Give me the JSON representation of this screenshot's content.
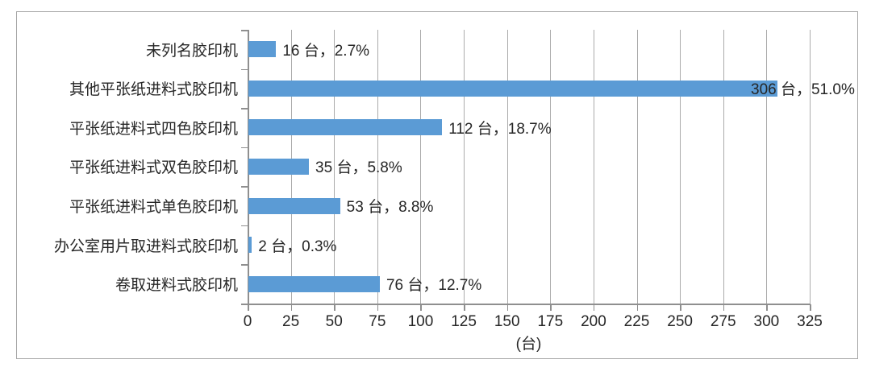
{
  "chart_data": {
    "type": "bar",
    "orientation": "horizontal",
    "title": "",
    "xlabel": "(台)",
    "ylabel": "",
    "unit": "台",
    "xlim": [
      0,
      325
    ],
    "xticks": [
      0,
      25,
      50,
      75,
      100,
      125,
      150,
      175,
      200,
      225,
      250,
      275,
      300,
      325
    ],
    "grid": true,
    "legend": "none",
    "categories": [
      "未列名胶印机",
      "其他平张纸进料式胶印机",
      "平张纸进料式四色胶印机",
      "平张纸进料式双色胶印机",
      "平张纸进料式单色胶印机",
      "办公室用片取进料式胶印机",
      "卷取进料式胶印机"
    ],
    "values": [
      16,
      306,
      112,
      35,
      53,
      2,
      76
    ],
    "percentages": [
      2.7,
      51.0,
      18.7,
      5.8,
      8.8,
      0.3,
      12.7
    ],
    "data_labels": [
      "16 台，2.7%",
      "306 台，51.0%",
      "112 台，18.7%",
      "35 台，5.8%",
      "53 台，8.8%",
      "2 台，0.3%",
      "76 台，12.7%"
    ],
    "colors": {
      "bar": "#5B9BD5",
      "gridline": "#ABABAB",
      "axis": "#8F8F8F",
      "text": "#262626",
      "frame_border": "#A6A6A6"
    }
  }
}
